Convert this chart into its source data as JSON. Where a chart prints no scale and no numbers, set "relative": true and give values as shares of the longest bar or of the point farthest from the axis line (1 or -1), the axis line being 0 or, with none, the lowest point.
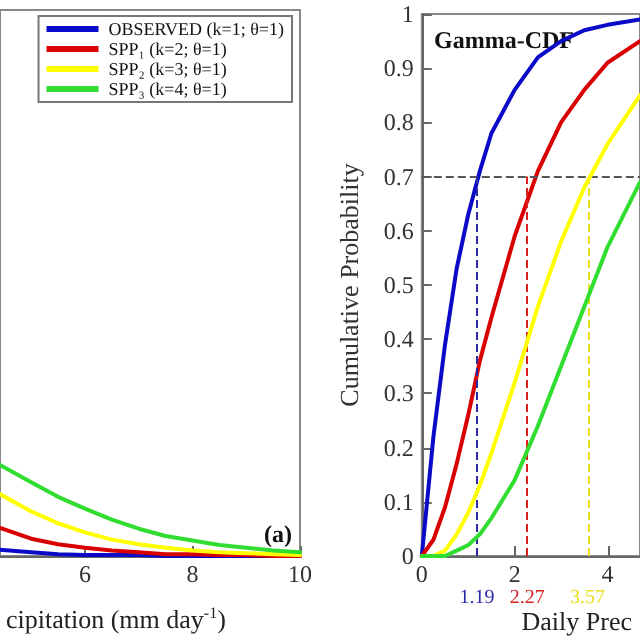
{
  "chart_data": [
    {
      "type": "line",
      "relative": true,
      "xlabel": "cipitation (mm day$^{-1}$)",
      "x": [
        4.42,
        5,
        5.5,
        6,
        6.5,
        7,
        7.5,
        8,
        8.5,
        9,
        9.5,
        10
      ],
      "xlim": [
        4.42,
        10
      ],
      "xticks": [
        6,
        8,
        10
      ],
      "tick_labels": "x",
      "legend": "top right",
      "grid": false,
      "marker": "none",
      "annotations": [
        "(a)"
      ],
      "series": [
        {
          "name": "OBSERVED (k=1; θ=1)",
          "color": "#0a0ac8",
          "values": [
            0.07,
            0.04,
            0.02,
            0.01,
            0.01,
            0.01,
            0,
            0,
            0,
            0,
            0,
            0
          ]
        },
        {
          "name": "SPP₁ (k=2; θ=1)",
          "color": "#d80000",
          "values": [
            0.31,
            0.19,
            0.13,
            0.09,
            0.06,
            0.04,
            0.02,
            0.02,
            0.01,
            0.01,
            0,
            0
          ]
        },
        {
          "name": "SPP₂ (k=3; θ=1)",
          "color": "#ffff00",
          "values": [
            0.68,
            0.49,
            0.36,
            0.26,
            0.18,
            0.13,
            0.09,
            0.06,
            0.04,
            0.03,
            0.02,
            0.01
          ]
        },
        {
          "name": "SPP₃ (k=4; θ=1)",
          "color": "#30dd30",
          "values": [
            1,
            0.81,
            0.65,
            0.52,
            0.4,
            0.3,
            0.22,
            0.17,
            0.12,
            0.09,
            0.06,
            0.04
          ]
        }
      ]
    },
    {
      "type": "line",
      "xlabel": "Daily Prec",
      "ylabel": "Cumulative Probability",
      "x": [
        0,
        0.25,
        0.5,
        0.75,
        1,
        1.25,
        1.5,
        2,
        2.5,
        3,
        3.5,
        4,
        4.7
      ],
      "xlim": [
        0,
        4.7
      ],
      "xticks": [
        0,
        2,
        4
      ],
      "ylim": [
        0,
        1
      ],
      "yticks": [
        0,
        0.1,
        0.2,
        0.3,
        0.4,
        0.5,
        0.6,
        0.7,
        0.8,
        0.9,
        1
      ],
      "grid": false,
      "legend": false,
      "marker": "none",
      "annotations": [
        "Gamma-CDF"
      ],
      "ref_lines": [
        {
          "axis": "y",
          "value": 0.7,
          "color": "#555555",
          "line_style": "dashed"
        },
        {
          "axis": "x",
          "value": 1.19,
          "label": "1.19",
          "color": "#2a2aa8",
          "line_style": "dashed"
        },
        {
          "axis": "x",
          "value": 2.27,
          "label": "2.27",
          "color": "#d82020",
          "line_style": "dashed"
        },
        {
          "axis": "x",
          "value": 3.57,
          "label": "3.57",
          "color": "#e8e020",
          "line_style": "dashed"
        }
      ],
      "series": [
        {
          "color": "#0a0ac8",
          "values": [
            0,
            0.22,
            0.39,
            0.53,
            0.63,
            0.71,
            0.78,
            0.86,
            0.92,
            0.95,
            0.97,
            0.98,
            0.99
          ]
        },
        {
          "color": "#d80000",
          "values": [
            0,
            0.03,
            0.09,
            0.17,
            0.26,
            0.36,
            0.44,
            0.59,
            0.71,
            0.8,
            0.86,
            0.91,
            0.95
          ]
        },
        {
          "color": "#ffff00",
          "values": [
            0,
            0,
            0.01,
            0.04,
            0.08,
            0.13,
            0.19,
            0.32,
            0.46,
            0.58,
            0.68,
            0.76,
            0.85
          ]
        },
        {
          "color": "#30dd30",
          "values": [
            0,
            0,
            0,
            0.01,
            0.02,
            0.04,
            0.07,
            0.14,
            0.24,
            0.35,
            0.46,
            0.57,
            0.69
          ]
        }
      ]
    }
  ]
}
